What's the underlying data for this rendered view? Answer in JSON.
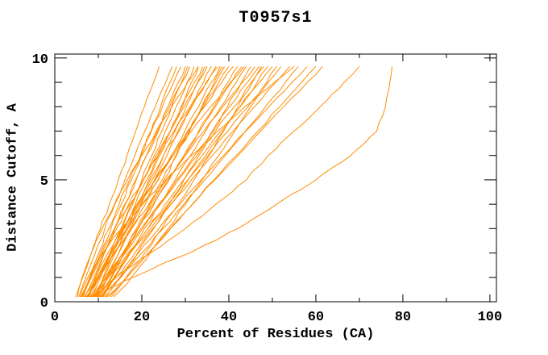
{
  "chart_data": {
    "type": "line",
    "title": "T0957s1",
    "xlabel": "Percent of Residues (CA)",
    "ylabel": "Distance Cutoff, A",
    "xlim": [
      0,
      101.5
    ],
    "ylim": [
      0,
      10.16
    ],
    "x_major_ticks": [
      0,
      20,
      40,
      60,
      80,
      100
    ],
    "x_minor_ticks": [
      10,
      30,
      50,
      70,
      90
    ],
    "y_major_ticks": [
      0,
      5,
      10
    ],
    "y_minor_ticks": [
      1,
      2,
      3,
      4,
      6,
      7,
      8,
      9
    ],
    "grid": false,
    "legend": false,
    "curve_color": "#FF8C00",
    "axis_color": "#000000",
    "background_color": "#FFFFFF",
    "cutoffs_angstrom": [
      0.2,
      0.5,
      1,
      1.5,
      2,
      3,
      4,
      5,
      6,
      7,
      8,
      9,
      9.65
    ],
    "series": [
      {
        "x_percent": [
          4.8,
          5.4,
          6.4,
          7.5,
          8.4,
          10.5,
          12.5,
          14.6,
          16.6,
          18.6,
          20.6,
          22.7,
          24
        ]
      },
      {
        "x_percent": [
          5.5,
          6.1,
          7.1,
          8.2,
          9.3,
          11.5,
          13.8,
          16.1,
          18.4,
          20.7,
          23.1,
          25.5,
          27
        ]
      },
      {
        "x_percent": [
          6.0,
          6.8,
          8.1,
          9.3,
          10.5,
          12.9,
          15.3,
          17.6,
          19.8,
          22.1,
          24.3,
          26.5,
          28
        ]
      },
      {
        "x_percent": [
          6.5,
          7.0,
          8.0,
          9.0,
          10.1,
          12.4,
          14.8,
          17.2,
          19.7,
          22.2,
          24.7,
          27.3,
          29
        ]
      },
      {
        "x_percent": [
          7.0,
          7.7,
          9.0,
          10.2,
          11.4,
          13.8,
          16.2,
          18.7,
          21.1,
          23.6,
          26.0,
          28.4,
          30
        ]
      },
      {
        "x_percent": [
          7.5,
          8.5,
          10.0,
          11.4,
          12.7,
          15.2,
          17.6,
          20.0,
          22.3,
          24.6,
          26.8,
          29.1,
          30.5
        ]
      },
      {
        "x_percent": [
          8.0,
          8.4,
          9.3,
          10.4,
          11.4,
          13.7,
          16.1,
          18.6,
          21.1,
          23.8,
          26.4,
          29.2,
          31
        ]
      },
      {
        "x_percent": [
          8.5,
          9.3,
          10.5,
          11.7,
          13.0,
          15.5,
          17.9,
          20.4,
          22.9,
          25.4,
          27.9,
          30.4,
          32
        ]
      },
      {
        "x_percent": [
          9.0,
          9.9,
          11.3,
          12.6,
          13.9,
          16.5,
          19.1,
          21.6,
          24.1,
          26.6,
          29.0,
          31.4,
          33
        ]
      },
      {
        "x_percent": [
          9.5,
          10.1,
          11.1,
          12.3,
          13.4,
          15.9,
          18.5,
          21.1,
          23.8,
          26.5,
          29.3,
          32.1,
          34
        ]
      },
      {
        "x_percent": [
          10.0,
          10.8,
          12.1,
          13.4,
          14.7,
          17.3,
          19.8,
          22.4,
          25.0,
          27.6,
          30.2,
          32.8,
          34.5
        ]
      },
      {
        "x_percent": [
          6.2,
          7.0,
          8.4,
          9.8,
          11.2,
          14.2,
          17.3,
          20.3,
          23.4,
          26.6,
          29.7,
          32.9,
          35
        ]
      },
      {
        "x_percent": [
          7.2,
          8.5,
          10.3,
          12.0,
          13.7,
          16.8,
          19.9,
          22.9,
          25.8,
          28.6,
          31.4,
          34.2,
          36
        ]
      },
      {
        "x_percent": [
          8.2,
          8.9,
          10.1,
          11.5,
          12.8,
          15.7,
          18.8,
          21.9,
          25.0,
          28.3,
          31.5,
          34.8,
          37
        ]
      },
      {
        "x_percent": [
          9.2,
          10.1,
          11.6,
          13.2,
          14.7,
          17.7,
          20.8,
          23.8,
          26.9,
          29.9,
          33.0,
          36.0,
          38
        ]
      },
      {
        "x_percent": [
          10.2,
          11.3,
          12.9,
          14.5,
          16.0,
          19.1,
          22.1,
          25.1,
          28.0,
          30.9,
          33.8,
          36.6,
          38.5
        ]
      },
      {
        "x_percent": [
          11.0,
          11.8,
          13.1,
          14.5,
          15.9,
          18.8,
          21.8,
          24.7,
          27.8,
          31.0,
          33.9,
          37.0,
          39
        ]
      },
      {
        "x_percent": [
          6.8,
          7.9,
          9.6,
          11.4,
          13.1,
          16.6,
          20.1,
          23.7,
          27.2,
          30.7,
          34.2,
          37.7,
          40
        ]
      },
      {
        "x_percent": [
          7.8,
          8.4,
          9.7,
          11.2,
          12.7,
          16.0,
          19.5,
          23.0,
          26.8,
          30.5,
          34.4,
          38.4,
          41
        ]
      },
      {
        "x_percent": [
          8.8,
          10.1,
          12.0,
          13.8,
          15.6,
          19.2,
          22.8,
          26.3,
          29.7,
          33.1,
          36.5,
          39.8,
          42
        ]
      },
      {
        "x_percent": [
          9.8,
          10.7,
          12.3,
          14.0,
          15.6,
          19.1,
          22.6,
          26.1,
          29.7,
          33.3,
          36.9,
          40.6,
          43
        ]
      },
      {
        "x_percent": [
          10.8,
          11.9,
          13.6,
          15.4,
          17.1,
          20.6,
          24.1,
          27.7,
          31.2,
          34.7,
          38.2,
          41.7,
          44
        ]
      },
      {
        "x_percent": [
          11.5,
          13.0,
          15.2,
          17.1,
          19.0,
          22.7,
          26.3,
          29.7,
          33.1,
          36.4,
          39.7,
          42.9,
          45
        ]
      },
      {
        "x_percent": [
          7.4,
          8.3,
          10.0,
          11.8,
          13.6,
          17.5,
          21.6,
          25.7,
          30.0,
          34.3,
          38.6,
          43.1,
          46
        ]
      },
      {
        "x_percent": [
          8.4,
          9.6,
          11.7,
          13.7,
          15.7,
          19.8,
          23.9,
          28.0,
          32.1,
          36.2,
          40.2,
          44.3,
          47
        ]
      },
      {
        "x_percent": [
          9.4,
          10.4,
          12.3,
          14.2,
          16.2,
          20.2,
          24.3,
          28.4,
          32.7,
          36.9,
          41.3,
          45.2,
          48
        ]
      },
      {
        "x_percent": [
          10.4,
          11.9,
          14.1,
          16.3,
          18.4,
          22.5,
          26.7,
          30.7,
          34.7,
          38.7,
          42.6,
          46.5,
          49
        ]
      },
      {
        "x_percent": [
          11.2,
          12.1,
          13.8,
          15.6,
          17.4,
          21.4,
          25.4,
          29.6,
          33.9,
          38.2,
          42.6,
          47.1,
          50
        ]
      },
      {
        "x_percent": [
          8.6,
          10.0,
          12.3,
          14.6,
          16.8,
          21.4,
          26.0,
          30.6,
          35.2,
          39.8,
          44.4,
          49.0,
          52
        ]
      },
      {
        "x_percent": [
          9.6,
          10.8,
          12.9,
          15.2,
          17.4,
          22.0,
          26.7,
          31.4,
          36.2,
          41.0,
          45.9,
          50.8,
          54
        ]
      },
      {
        "x_percent": [
          10.6,
          12.3,
          15.0,
          17.5,
          20.0,
          24.9,
          29.7,
          34.5,
          39.2,
          43.8,
          48.4,
          53.0,
          56
        ]
      },
      {
        "x_percent": [
          11.8,
          12.9,
          14.9,
          17.0,
          19.2,
          23.9,
          28.8,
          33.7,
          38.8,
          43.9,
          49.2,
          54.5,
          58
        ]
      },
      {
        "x_percent": [
          12.5,
          14.0,
          16.5,
          19.1,
          21.5,
          26.6,
          31.6,
          36.6,
          41.7,
          46.7,
          51.7,
          56.7,
          60
        ]
      },
      {
        "x_percent": [
          13.0,
          14.3,
          16.6,
          19.1,
          21.5,
          26.5,
          31.7,
          36.8,
          42.1,
          47.3,
          52.6,
          58.0,
          61.5
        ]
      },
      {
        "x_percent": [
          5.2,
          5.5,
          6.3,
          7.3,
          8.4,
          10.9,
          13.7,
          16.7,
          20.0,
          23.3,
          26.9,
          30.5,
          33
        ]
      },
      {
        "x_percent": [
          6.6,
          7.1,
          8.2,
          9.5,
          10.8,
          13.8,
          17.0,
          20.3,
          23.8,
          27.4,
          31.1,
          35.0,
          37.5
        ]
      },
      {
        "x_percent": [
          7.7,
          8.2,
          9.3,
          10.7,
          12.2,
          15.5,
          19.2,
          23.1,
          27.2,
          31.4,
          35.8,
          40.4,
          43.5
        ]
      },
      {
        "x_percent": [
          12.0,
          13.9,
          16.4,
          18.6,
          20.7,
          24.6,
          28.4,
          32.0,
          35.5,
          38.8,
          42.1,
          45.4,
          47.5
        ]
      },
      {
        "x_percent": [
          13.5,
          15.2,
          17.6,
          19.8,
          21.9,
          26.0,
          30.0,
          33.9,
          37.7,
          41.4,
          45.0,
          48.7,
          51
        ]
      },
      {
        "x_percent": [
          5.8,
          6.3,
          7.6,
          9.2,
          11.0,
          15.3,
          20.2,
          25.5,
          31.4,
          37.4,
          43.7,
          50.4,
          55
        ]
      },
      {
        "x_percent": [
          9.0,
          11.0,
          14.0,
          18.0,
          22.0,
          30.0,
          37.0,
          44.0,
          49.0,
          55.0,
          61.0,
          66.5,
          70
        ]
      },
      {
        "x_percent": [
          8.0,
          12.0,
          18.0,
          24.0,
          31.0,
          42.0,
          51.0,
          60.0,
          68.0,
          74.0,
          76.0,
          77.0,
          77.5
        ]
      }
    ]
  }
}
